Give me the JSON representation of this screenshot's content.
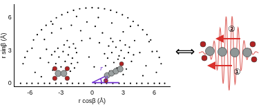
{
  "chart_data": {
    "type": "scatter",
    "x_label": "r cosβ (Å)",
    "y_label": "r sinβ (Å)",
    "xlim": [
      -7.5,
      7.5
    ],
    "xticks": [
      -6,
      -3,
      0,
      3,
      6
    ],
    "ylim": [
      -0.3,
      7.2
    ],
    "yticks": [
      0,
      3,
      6
    ],
    "grid": false,
    "color": "#000000",
    "marker": "circle",
    "annotations": [
      "r",
      "β"
    ],
    "x": [
      -6.9,
      -6.3,
      -5.8,
      -5.2,
      -4.6,
      -4.1,
      -3.5,
      -3.0,
      -2.4,
      -1.9,
      -1.3,
      -0.8,
      0.3,
      0.9,
      1.4,
      2.0,
      2.6,
      3.1,
      3.7,
      4.3,
      4.8,
      5.4,
      6.0,
      6.5,
      7.0,
      6.66,
      6.25,
      5.65,
      4.88,
      3.96,
      2.92,
      1.79,
      0.6,
      -0.6,
      -1.79,
      -2.92,
      -3.96,
      -4.88,
      -5.65,
      -6.25,
      -6.66,
      6.48,
      4.44,
      2.36,
      0.0,
      -2.36,
      -4.44,
      -6.48,
      5.29,
      3.45,
      1.2,
      -1.2,
      -3.45,
      -5.29,
      -3.8,
      -3.5,
      -3.2,
      -3.0,
      -2.8,
      -2.6,
      -2.5,
      -2.3,
      -2.2,
      -2.0,
      -1.9,
      -1.7,
      -1.5,
      -1.8,
      -2.4,
      -3.3,
      -3.9,
      -4.2,
      -4.4,
      -2.9,
      -2.1,
      -1.4,
      -2.7,
      -3.6,
      -1.6,
      1.3,
      1.5,
      1.7,
      1.9,
      2.1,
      2.3,
      2.4,
      2.6,
      2.8,
      2.9,
      3.1,
      3.3,
      3.5,
      1.6,
      2.0,
      2.7,
      3.2,
      3.8,
      1.2,
      2.2,
      3.0,
      3.6,
      1.8,
      2.5,
      4.0,
      -5.5,
      -5.0,
      -4.6,
      -3.9,
      -3.0,
      -2.0,
      -1.1,
      -0.5,
      0.3,
      1.0,
      1.9,
      3.0,
      4.1,
      4.6,
      5.2,
      5.8,
      -0.2,
      0.7,
      -1.0,
      -4.9,
      4.9,
      0.6,
      -1.5,
      3.7,
      -3.8,
      5.5,
      -5.8,
      -0.3,
      0.2,
      6.2
    ],
    "values": [
      0,
      0,
      0,
      0,
      0,
      0,
      0,
      0,
      0,
      0,
      0,
      0,
      0,
      0,
      0,
      0,
      0,
      0,
      0,
      0,
      0,
      0,
      0,
      0,
      0,
      1.79,
      2.92,
      3.96,
      4.88,
      5.65,
      6.25,
      6.66,
      6.87,
      6.87,
      6.66,
      6.25,
      5.65,
      4.88,
      3.96,
      2.92,
      1.79,
      2.36,
      5.29,
      6.48,
      6.9,
      6.48,
      5.29,
      2.36,
      4.44,
      5.98,
      6.8,
      6.8,
      5.98,
      4.44,
      1.2,
      1.8,
      2.4,
      1.5,
      2.9,
      2.0,
      1.2,
      2.6,
      3.3,
      1.8,
      2.3,
      1.4,
      2.8,
      3.6,
      3.9,
      3.2,
      2.6,
      1.9,
      3.1,
      0.8,
      1.1,
      1.9,
      3.5,
      2.9,
      3.2,
      1.6,
      2.3,
      1.1,
      2.8,
      1.9,
      3.3,
      1.4,
      2.5,
      3.0,
      1.8,
      2.3,
      1.3,
      2.8,
      3.4,
      3.8,
      3.9,
      3.5,
      2.0,
      2.7,
      0.9,
      0.8,
      3.3,
      4.1,
      2.2,
      2.6,
      1.0,
      2.3,
      4.0,
      4.6,
      5.0,
      5.3,
      4.8,
      5.6,
      5.2,
      4.6,
      5.5,
      4.7,
      3.9,
      2.8,
      1.6,
      2.9,
      4.1,
      3.7,
      3.9,
      0.6,
      0.7,
      6.0,
      6.1,
      5.2,
      5.4,
      3.8,
      3.2,
      2.4,
      1.5,
      1.0
    ]
  },
  "diagram": {
    "symbol": "⟺",
    "labels": [
      "①",
      "②"
    ]
  }
}
